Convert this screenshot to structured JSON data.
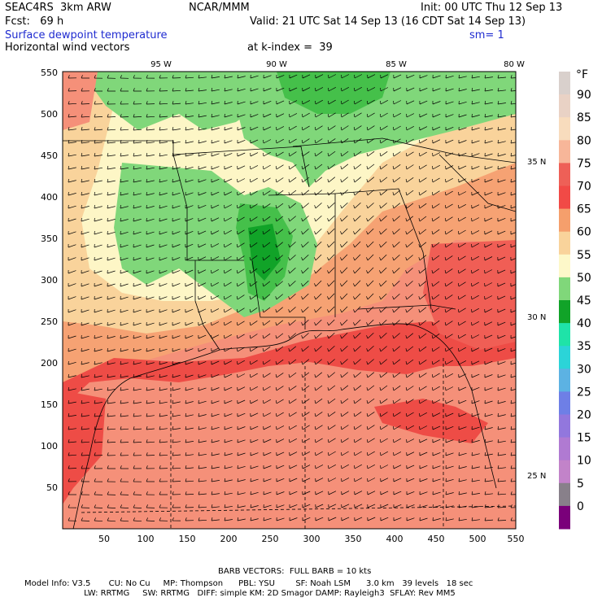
{
  "header": {
    "model": "SEAC4RS  3km ARW",
    "org": "NCAR/MMM",
    "init": "Init: 00 UTC Thu 12 Sep 13",
    "fcst": "Fcst:   69 h",
    "valid": "Valid: 21 UTC Sat 14 Sep 13 (16 CDT Sat 14 Sep 13)",
    "field": "Surface dewpoint temperature",
    "smoothing": "sm= 1",
    "vectors": "Horizontal wind vectors",
    "level": "at k-index =  39"
  },
  "map": {
    "lon_labels": [
      "95 W",
      "90 W",
      "85 W",
      "80 W"
    ],
    "lat_labels": [
      "35 N",
      "30 N",
      "25 N"
    ],
    "x_ticks": [
      "50",
      "100",
      "150",
      "200",
      "250",
      "300",
      "350",
      "400",
      "450",
      "500",
      "550"
    ],
    "y_ticks": [
      "550",
      "500",
      "450",
      "400",
      "350",
      "300",
      "250",
      "200",
      "150",
      "100",
      "50"
    ],
    "x_range": [
      0,
      550
    ],
    "y_range": [
      0,
      550
    ],
    "colors": {
      "tan_light": "#fdf6c6",
      "tan": "#f9d39b",
      "orange": "#f6a273",
      "salmon": "#f59079",
      "red": "#ee4c46",
      "green_light": "#80d77a",
      "green_mid": "#45c04a",
      "green_dark": "#11a328"
    }
  },
  "colorbar": {
    "unit": "°F",
    "labels": [
      "90",
      "85",
      "80",
      "75",
      "70",
      "65",
      "60",
      "55",
      "50",
      "45",
      "40",
      "35",
      "30",
      "25",
      "20",
      "15",
      "10",
      "5",
      "0"
    ],
    "colors": [
      "#d9d0cc",
      "#e9d2c5",
      "#f8dcbd",
      "#f7b699",
      "#ee6057",
      "#f14a46",
      "#f59f6c",
      "#f9d39b",
      "#fdf8c9",
      "#80d77a",
      "#11a328",
      "#1fe3a8",
      "#2bd4d8",
      "#5cb2e3",
      "#6e7fe6",
      "#9277dd",
      "#b07ad2",
      "#c283c9",
      "#88808a",
      "#7a007a"
    ]
  },
  "footer": {
    "barb": "BARB VECTORS:  FULL BARB = 10 kts",
    "line1": "Model Info: V3.5       CU: No Cu     MP: Thompson      PBL: YSU        SF: Noah LSM      3.0 km   39 levels   18 sec",
    "line2": "                       LW: RRTMG     SW: RRTMG   DIFF: simple KM: 2D Smagor DAMP: Rayleigh3  SFLAY: Rev MM5"
  }
}
